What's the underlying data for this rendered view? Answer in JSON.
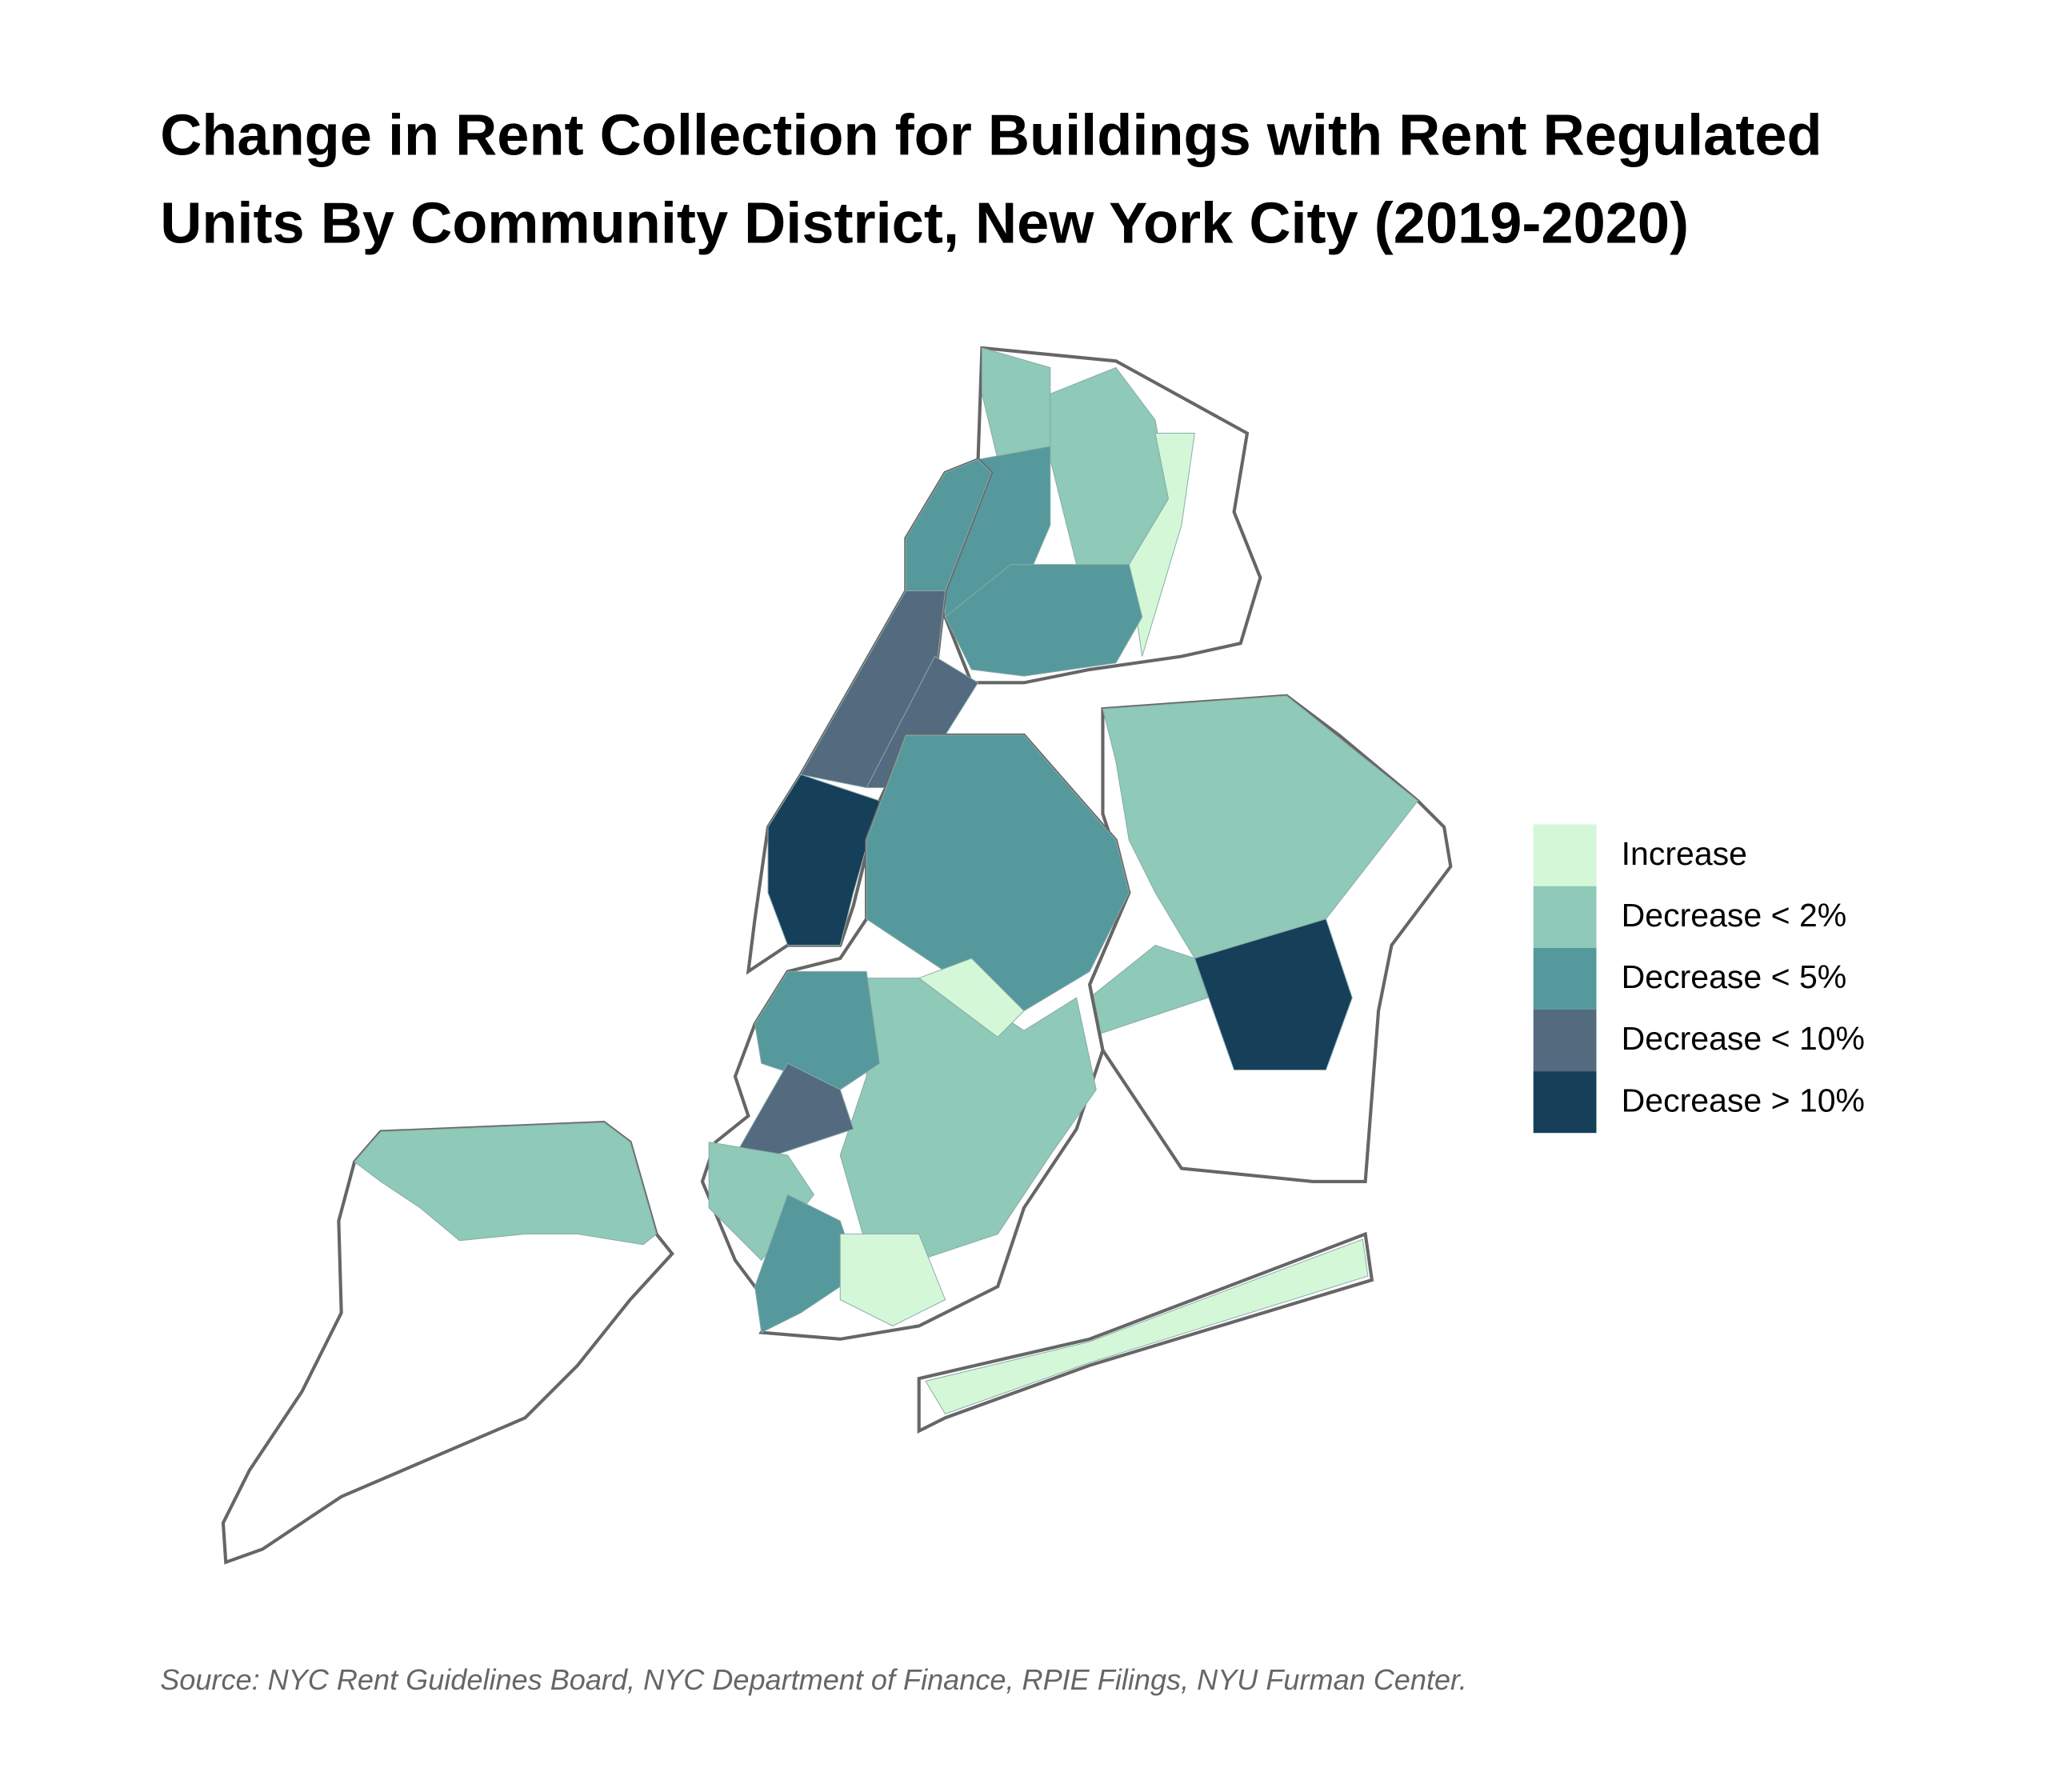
{
  "title_lines": [
    "Change in Rent Collection for Buildings with Rent Regulated",
    "Units By Community District, New York City (2019-2020)"
  ],
  "legend": [
    {
      "label": "Increase",
      "color": "#d4f7d8"
    },
    {
      "label": "Decrease < 2%",
      "color": "#8fc9b7"
    },
    {
      "label": "Decrease < 5%",
      "color": "#55999c"
    },
    {
      "label": "Decrease < 10%",
      "color": "#546a7f"
    },
    {
      "label": "Decrease > 10%",
      "color": "#163f5a"
    }
  ],
  "source": "Source: NYC Rent Guidelines Board, NYC Department of Finance, RPIE Filings, NYU Furman Center."
}
